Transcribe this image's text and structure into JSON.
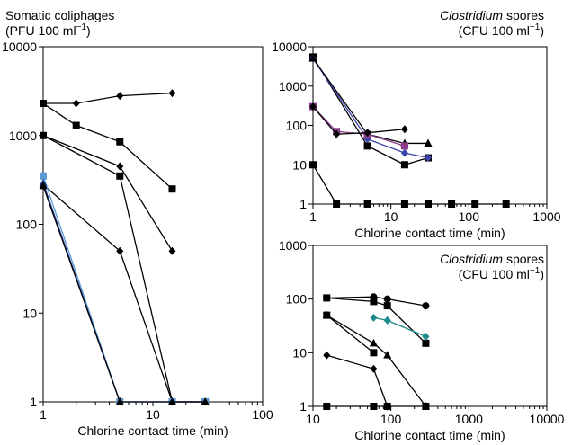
{
  "chart_data": [
    {
      "id": "left",
      "type": "line",
      "title_line1": "Somatic coliphages",
      "title_line2": "(PFU 100 ml−1)",
      "xlabel": "Chlorine contact time (min)",
      "ylabel": "",
      "x_scale": "log",
      "y_scale": "log",
      "xlim": [
        1,
        100
      ],
      "ylim": [
        1,
        10000
      ],
      "xticks": [
        1,
        10,
        100
      ],
      "xtick_labels": [
        "1",
        "10",
        "100"
      ],
      "yticks": [
        1,
        10,
        100,
        1000,
        10000
      ],
      "ytick_labels": [
        "1",
        "10",
        "100",
        "1000",
        "10000"
      ],
      "grid": false,
      "series": [
        {
          "marker": "diamond",
          "color": "#000000",
          "x": [
            1,
            2,
            5,
            15
          ],
          "y": [
            2300,
            2300,
            2800,
            3000
          ]
        },
        {
          "marker": "square",
          "color": "#000000",
          "x": [
            1,
            2,
            5,
            15
          ],
          "y": [
            2300,
            1300,
            850,
            250
          ]
        },
        {
          "marker": "diamond",
          "color": "#000000",
          "x": [
            1,
            5,
            15
          ],
          "y": [
            1000,
            450,
            50
          ]
        },
        {
          "marker": "square",
          "color": "#000000",
          "x": [
            1,
            5,
            15,
            30
          ],
          "y": [
            1000,
            350,
            1,
            1
          ]
        },
        {
          "marker": "diamond",
          "color": "#000000",
          "x": [
            1,
            5,
            15,
            30
          ],
          "y": [
            280,
            50,
            1,
            1
          ]
        },
        {
          "marker": "square",
          "color": "#5b9bd5",
          "x": [
            1,
            5,
            15,
            30
          ],
          "y": [
            350,
            1,
            1,
            1
          ]
        },
        {
          "marker": "triangle",
          "color": "#1f3a93",
          "x": [
            1,
            5,
            15,
            30
          ],
          "y": [
            290,
            1,
            1,
            1
          ]
        },
        {
          "marker": "triangle",
          "color": "#000000",
          "x": [
            1,
            5,
            15,
            30
          ],
          "y": [
            270,
            1,
            1,
            1
          ]
        }
      ]
    },
    {
      "id": "top_right",
      "type": "line",
      "title_italic": "Clostridium",
      "title_rest": " spores",
      "title_line2": "(CFU 100 ml−1)",
      "xlabel": "Chlorine contact time (min)",
      "ylabel": "",
      "x_scale": "log",
      "y_scale": "log",
      "xlim": [
        1,
        1000
      ],
      "ylim": [
        1,
        10000
      ],
      "xticks": [
        1,
        10,
        100,
        1000
      ],
      "xtick_labels": [
        "1",
        "10",
        "100",
        "1000"
      ],
      "yticks": [
        1,
        10,
        100,
        1000,
        10000
      ],
      "ytick_labels": [
        "1",
        "10",
        "100",
        "1000",
        "10000"
      ],
      "grid": false,
      "series": [
        {
          "marker": "square",
          "color": "#000000",
          "x": [
            1,
            5,
            15,
            30
          ],
          "y": [
            5500,
            30,
            10,
            15
          ]
        },
        {
          "marker": "diamond",
          "color": "#3b44a8",
          "x": [
            1,
            5,
            15,
            30
          ],
          "y": [
            5000,
            45,
            20,
            15
          ]
        },
        {
          "marker": "triangle",
          "color": "#000000",
          "x": [
            1,
            5,
            15,
            30
          ],
          "y": [
            5000,
            60,
            35,
            35
          ]
        },
        {
          "marker": "square",
          "color": "#8b3a8b",
          "x": [
            1,
            2,
            5,
            15
          ],
          "y": [
            300,
            70,
            60,
            30
          ]
        },
        {
          "marker": "diamond",
          "color": "#000000",
          "x": [
            1,
            2,
            5,
            15
          ],
          "y": [
            300,
            60,
            65,
            80
          ]
        },
        {
          "marker": "square",
          "color": "#000000",
          "x": [
            1,
            2,
            5,
            15,
            30,
            60,
            120,
            300
          ],
          "y": [
            10,
            1,
            1,
            1,
            1,
            1,
            1,
            1
          ]
        }
      ]
    },
    {
      "id": "bottom_right",
      "type": "line",
      "title_italic": "Clostridium",
      "title_rest": " spores",
      "title_line2": "(CFU 100 ml−1)",
      "xlabel": "Chlorine contact time (min)",
      "ylabel": "",
      "x_scale": "log",
      "y_scale": "log",
      "xlim": [
        10,
        10000
      ],
      "ylim": [
        1,
        1000
      ],
      "xticks": [
        10,
        100,
        1000,
        10000
      ],
      "xtick_labels": [
        "10",
        "100",
        "1000",
        "10000"
      ],
      "yticks": [
        1,
        10,
        100,
        1000
      ],
      "ytick_labels": [
        "1",
        "10",
        "100",
        "1000"
      ],
      "grid": false,
      "series": [
        {
          "marker": "circle",
          "color": "#000000",
          "x": [
            15,
            60,
            90,
            280
          ],
          "y": [
            105,
            110,
            100,
            75
          ]
        },
        {
          "marker": "square",
          "color": "#000000",
          "x": [
            15,
            60,
            90,
            280
          ],
          "y": [
            105,
            90,
            75,
            15
          ]
        },
        {
          "marker": "diamond",
          "color": "#1a8a8a",
          "x": [
            60,
            90,
            280
          ],
          "y": [
            45,
            40,
            20
          ]
        },
        {
          "marker": "square",
          "color": "#000000",
          "x": [
            15,
            60
          ],
          "y": [
            50,
            10
          ]
        },
        {
          "marker": "triangle",
          "color": "#000000",
          "x": [
            15,
            60,
            90,
            280
          ],
          "y": [
            50,
            15,
            9,
            1
          ]
        },
        {
          "marker": "diamond",
          "color": "#000000",
          "x": [
            15,
            60,
            90
          ],
          "y": [
            9,
            5,
            1
          ]
        },
        {
          "marker": "square",
          "color": "#000000",
          "x": [
            15,
            60,
            90,
            280
          ],
          "y": [
            1,
            1,
            1,
            1
          ]
        }
      ]
    }
  ]
}
